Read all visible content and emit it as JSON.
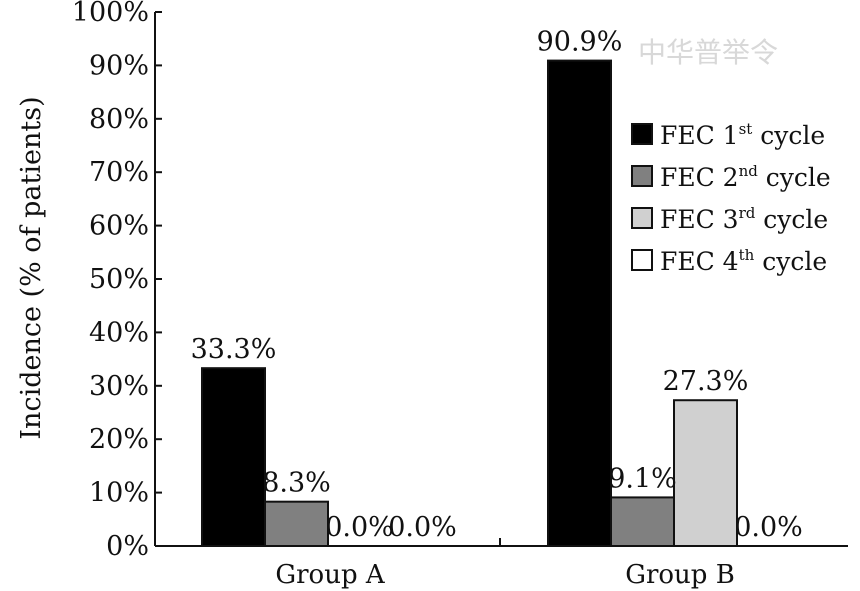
{
  "chart_data": {
    "type": "bar",
    "categories": [
      "Group A",
      "Group B"
    ],
    "series": [
      {
        "name": "FEC 1st cycle",
        "label_base": "FEC 1",
        "label_sup": "st",
        "label_rest": " cycle",
        "color": "#000000",
        "values": [
          33.3,
          90.9
        ],
        "labels": [
          "33.3%",
          "90.9%"
        ]
      },
      {
        "name": "FEC 2nd cycle",
        "label_base": "FEC 2",
        "label_sup": "nd",
        "label_rest": " cycle",
        "color": "#808080",
        "values": [
          8.3,
          9.1
        ],
        "labels": [
          "8.3%",
          "9.1%"
        ]
      },
      {
        "name": "FEC 3rd cycle",
        "label_base": "FEC 3",
        "label_sup": "rd",
        "label_rest": " cycle",
        "color": "#d0d0d0",
        "values": [
          0.0,
          27.3
        ],
        "labels": [
          "0.0%",
          "27.3%"
        ]
      },
      {
        "name": "FEC 4th cycle",
        "label_base": "FEC 4",
        "label_sup": "th",
        "label_rest": " cycle",
        "color": "#ffffff",
        "values": [
          0.0,
          0.0
        ],
        "labels": [
          "0.0%",
          "0.0%"
        ]
      }
    ],
    "title": "",
    "xlabel": "",
    "ylabel": "Incidence (% of patients)",
    "ylim": [
      0,
      100
    ],
    "yticks": [
      "0%",
      "10%",
      "20%",
      "30%",
      "40%",
      "50%",
      "60%",
      "70%",
      "80%",
      "90%",
      "100%"
    ],
    "grid": false,
    "legend_position": "top-right",
    "watermark": "中华普举令"
  }
}
